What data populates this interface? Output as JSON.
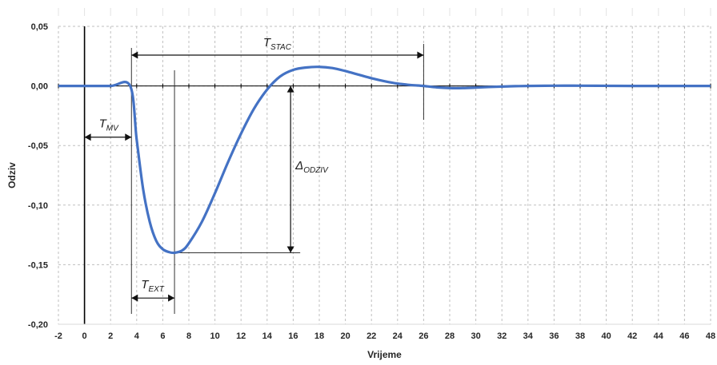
{
  "chart_data": {
    "type": "line",
    "title": "",
    "xlabel": "Vrijeme",
    "ylabel": "Odziv",
    "xlim": [
      -2,
      48
    ],
    "ylim": [
      -0.2,
      0.05
    ],
    "x_ticks": [
      -2,
      0,
      2,
      4,
      6,
      8,
      10,
      12,
      14,
      16,
      18,
      20,
      22,
      24,
      26,
      28,
      30,
      32,
      34,
      36,
      38,
      40,
      42,
      44,
      46,
      48
    ],
    "y_ticks": [
      0.05,
      0.0,
      -0.05,
      -0.1,
      -0.15,
      -0.2
    ],
    "y_tick_labels": [
      "0,05",
      "0,00",
      "-0,05",
      "-0,10",
      "-0,15",
      "-0,20"
    ],
    "grid": true,
    "legend": "none",
    "series": [
      {
        "color": "#4472C4",
        "x": [
          -2,
          0,
          2,
          3.5,
          4,
          4.5,
          5,
          5.5,
          6,
          6.5,
          6.9,
          7.5,
          8,
          9,
          10,
          11,
          12,
          13,
          14,
          15,
          16,
          17,
          18,
          19,
          20,
          21,
          22,
          23,
          24,
          25,
          26,
          27,
          28,
          29,
          30,
          31,
          32,
          33,
          34,
          36,
          38,
          40,
          42,
          44,
          46,
          48
        ],
        "y": [
          0,
          0,
          0,
          0,
          -0.045,
          -0.087,
          -0.114,
          -0.13,
          -0.137,
          -0.1395,
          -0.14,
          -0.138,
          -0.132,
          -0.114,
          -0.09,
          -0.064,
          -0.04,
          -0.019,
          -0.003,
          0.008,
          0.0135,
          0.0155,
          0.016,
          0.015,
          0.0125,
          0.0095,
          0.0065,
          0.004,
          0.002,
          0.0008,
          0.0,
          -0.0012,
          -0.0018,
          -0.0018,
          -0.0014,
          -0.0009,
          -0.0005,
          -0.0002,
          0.0,
          0.0002,
          0.0002,
          0.0001,
          0.0,
          0.0,
          0.0,
          0.0
        ]
      }
    ],
    "annotations": {
      "t_mv": {
        "main": "T",
        "sub": "MV",
        "x_from": 0,
        "x_to": 3.6,
        "y": -0.045
      },
      "t_ext": {
        "main": "T",
        "sub": "EXT",
        "x_from": 3.6,
        "x_to": 6.9,
        "y": -0.178
      },
      "t_stac": {
        "main": "T",
        "sub": "STAC",
        "x_from": 3.6,
        "x_to": 26.0,
        "y": 0.026
      },
      "delta_odziv": {
        "main": "Δ",
        "sub": "ODZIV",
        "x": 15.8,
        "y_from": 0.0,
        "y_to": -0.14
      }
    }
  }
}
